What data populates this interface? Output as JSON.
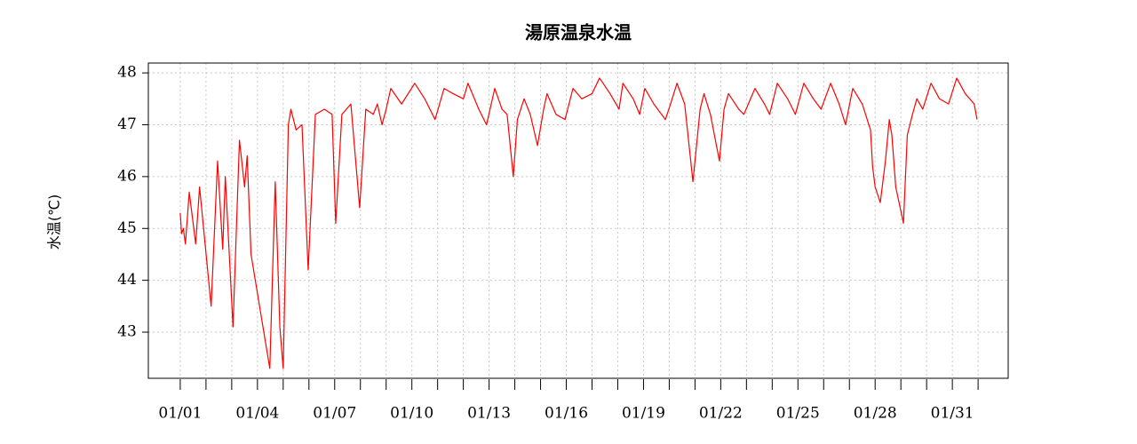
{
  "chart_data": {
    "type": "line",
    "title": "湯原温泉水温",
    "y_label": "水温(℃)",
    "x": [
      0,
      0.05,
      0.12,
      0.2,
      0.35,
      0.6,
      0.75,
      1.2,
      1.45,
      1.65,
      1.75,
      2.05,
      2.3,
      2.5,
      2.6,
      2.75,
      3.48,
      3.69,
      3.87,
      4.0,
      4.2,
      4.3,
      4.5,
      4.73,
      4.97,
      5.25,
      5.6,
      5.9,
      6.04,
      6.28,
      6.63,
      6.97,
      7.21,
      7.5,
      7.66,
      7.84,
      8.0,
      8.18,
      8.6,
      9.11,
      9.5,
      9.9,
      10.25,
      10.6,
      11.0,
      11.18,
      11.6,
      11.9,
      12.22,
      12.5,
      12.7,
      12.94,
      13.1,
      13.36,
      13.6,
      13.88,
      14.12,
      14.25,
      14.6,
      14.95,
      15.26,
      15.6,
      16.0,
      16.29,
      16.7,
      17.05,
      17.2,
      17.6,
      17.85,
      18.05,
      18.4,
      18.85,
      19.05,
      19.3,
      19.6,
      19.92,
      20.2,
      20.35,
      20.6,
      20.95,
      21.13,
      21.3,
      21.7,
      21.9,
      22.33,
      22.7,
      22.9,
      23.2,
      23.6,
      23.9,
      24.23,
      24.6,
      24.9,
      25.27,
      25.6,
      25.85,
      26.13,
      26.5,
      26.82,
      26.9,
      27.0,
      27.2,
      27.4,
      27.55,
      27.65,
      27.8,
      28.1,
      28.25,
      28.45,
      28.62,
      28.85,
      29.17,
      29.5,
      29.85,
      30.17,
      30.5,
      30.85,
      30.96
    ],
    "values": [
      45.3,
      44.9,
      45.0,
      44.7,
      45.7,
      44.7,
      45.8,
      43.5,
      46.3,
      44.6,
      46.0,
      43.1,
      46.7,
      45.8,
      46.4,
      44.5,
      42.3,
      45.9,
      43.1,
      42.3,
      47.0,
      47.3,
      46.9,
      47.0,
      44.2,
      47.2,
      47.3,
      47.2,
      45.1,
      47.2,
      47.4,
      45.4,
      47.3,
      47.2,
      47.4,
      47.0,
      47.3,
      47.7,
      47.4,
      47.8,
      47.5,
      47.1,
      47.7,
      47.6,
      47.5,
      47.8,
      47.3,
      47.0,
      47.7,
      47.3,
      47.2,
      46.0,
      47.1,
      47.5,
      47.2,
      46.6,
      47.3,
      47.6,
      47.2,
      47.1,
      47.7,
      47.5,
      47.6,
      47.9,
      47.6,
      47.3,
      47.8,
      47.5,
      47.2,
      47.7,
      47.4,
      47.1,
      47.4,
      47.8,
      47.4,
      45.9,
      47.3,
      47.6,
      47.2,
      46.3,
      47.3,
      47.6,
      47.3,
      47.2,
      47.7,
      47.4,
      47.2,
      47.8,
      47.5,
      47.2,
      47.8,
      47.5,
      47.3,
      47.8,
      47.4,
      47.0,
      47.7,
      47.4,
      46.9,
      46.2,
      45.8,
      45.5,
      46.3,
      47.1,
      46.8,
      45.8,
      45.1,
      46.8,
      47.2,
      47.5,
      47.3,
      47.8,
      47.5,
      47.4,
      47.9,
      47.6,
      47.4,
      47.1
    ],
    "color": "#ff0000",
    "xlim": [
      -1.24,
      32.17
    ],
    "ylim": [
      42.11,
      48.19
    ],
    "xticks": [
      {
        "value": 0,
        "label": "01/01"
      },
      {
        "value": 3,
        "label": "01/04"
      },
      {
        "value": 6,
        "label": "01/07"
      },
      {
        "value": 9,
        "label": "01/10"
      },
      {
        "value": 12,
        "label": "01/13"
      },
      {
        "value": 15,
        "label": "01/16"
      },
      {
        "value": 18,
        "label": "01/19"
      },
      {
        "value": 21,
        "label": "01/22"
      },
      {
        "value": 24,
        "label": "01/25"
      },
      {
        "value": 27,
        "label": "01/28"
      },
      {
        "value": 30,
        "label": "01/31"
      }
    ],
    "xminorticks": [
      1,
      2,
      4,
      5,
      7,
      8,
      10,
      11,
      13,
      14,
      16,
      17,
      19,
      20,
      22,
      23,
      25,
      26,
      28,
      29,
      31
    ],
    "yticks": [
      43,
      44,
      45,
      46,
      47,
      48
    ],
    "grid": true
  }
}
